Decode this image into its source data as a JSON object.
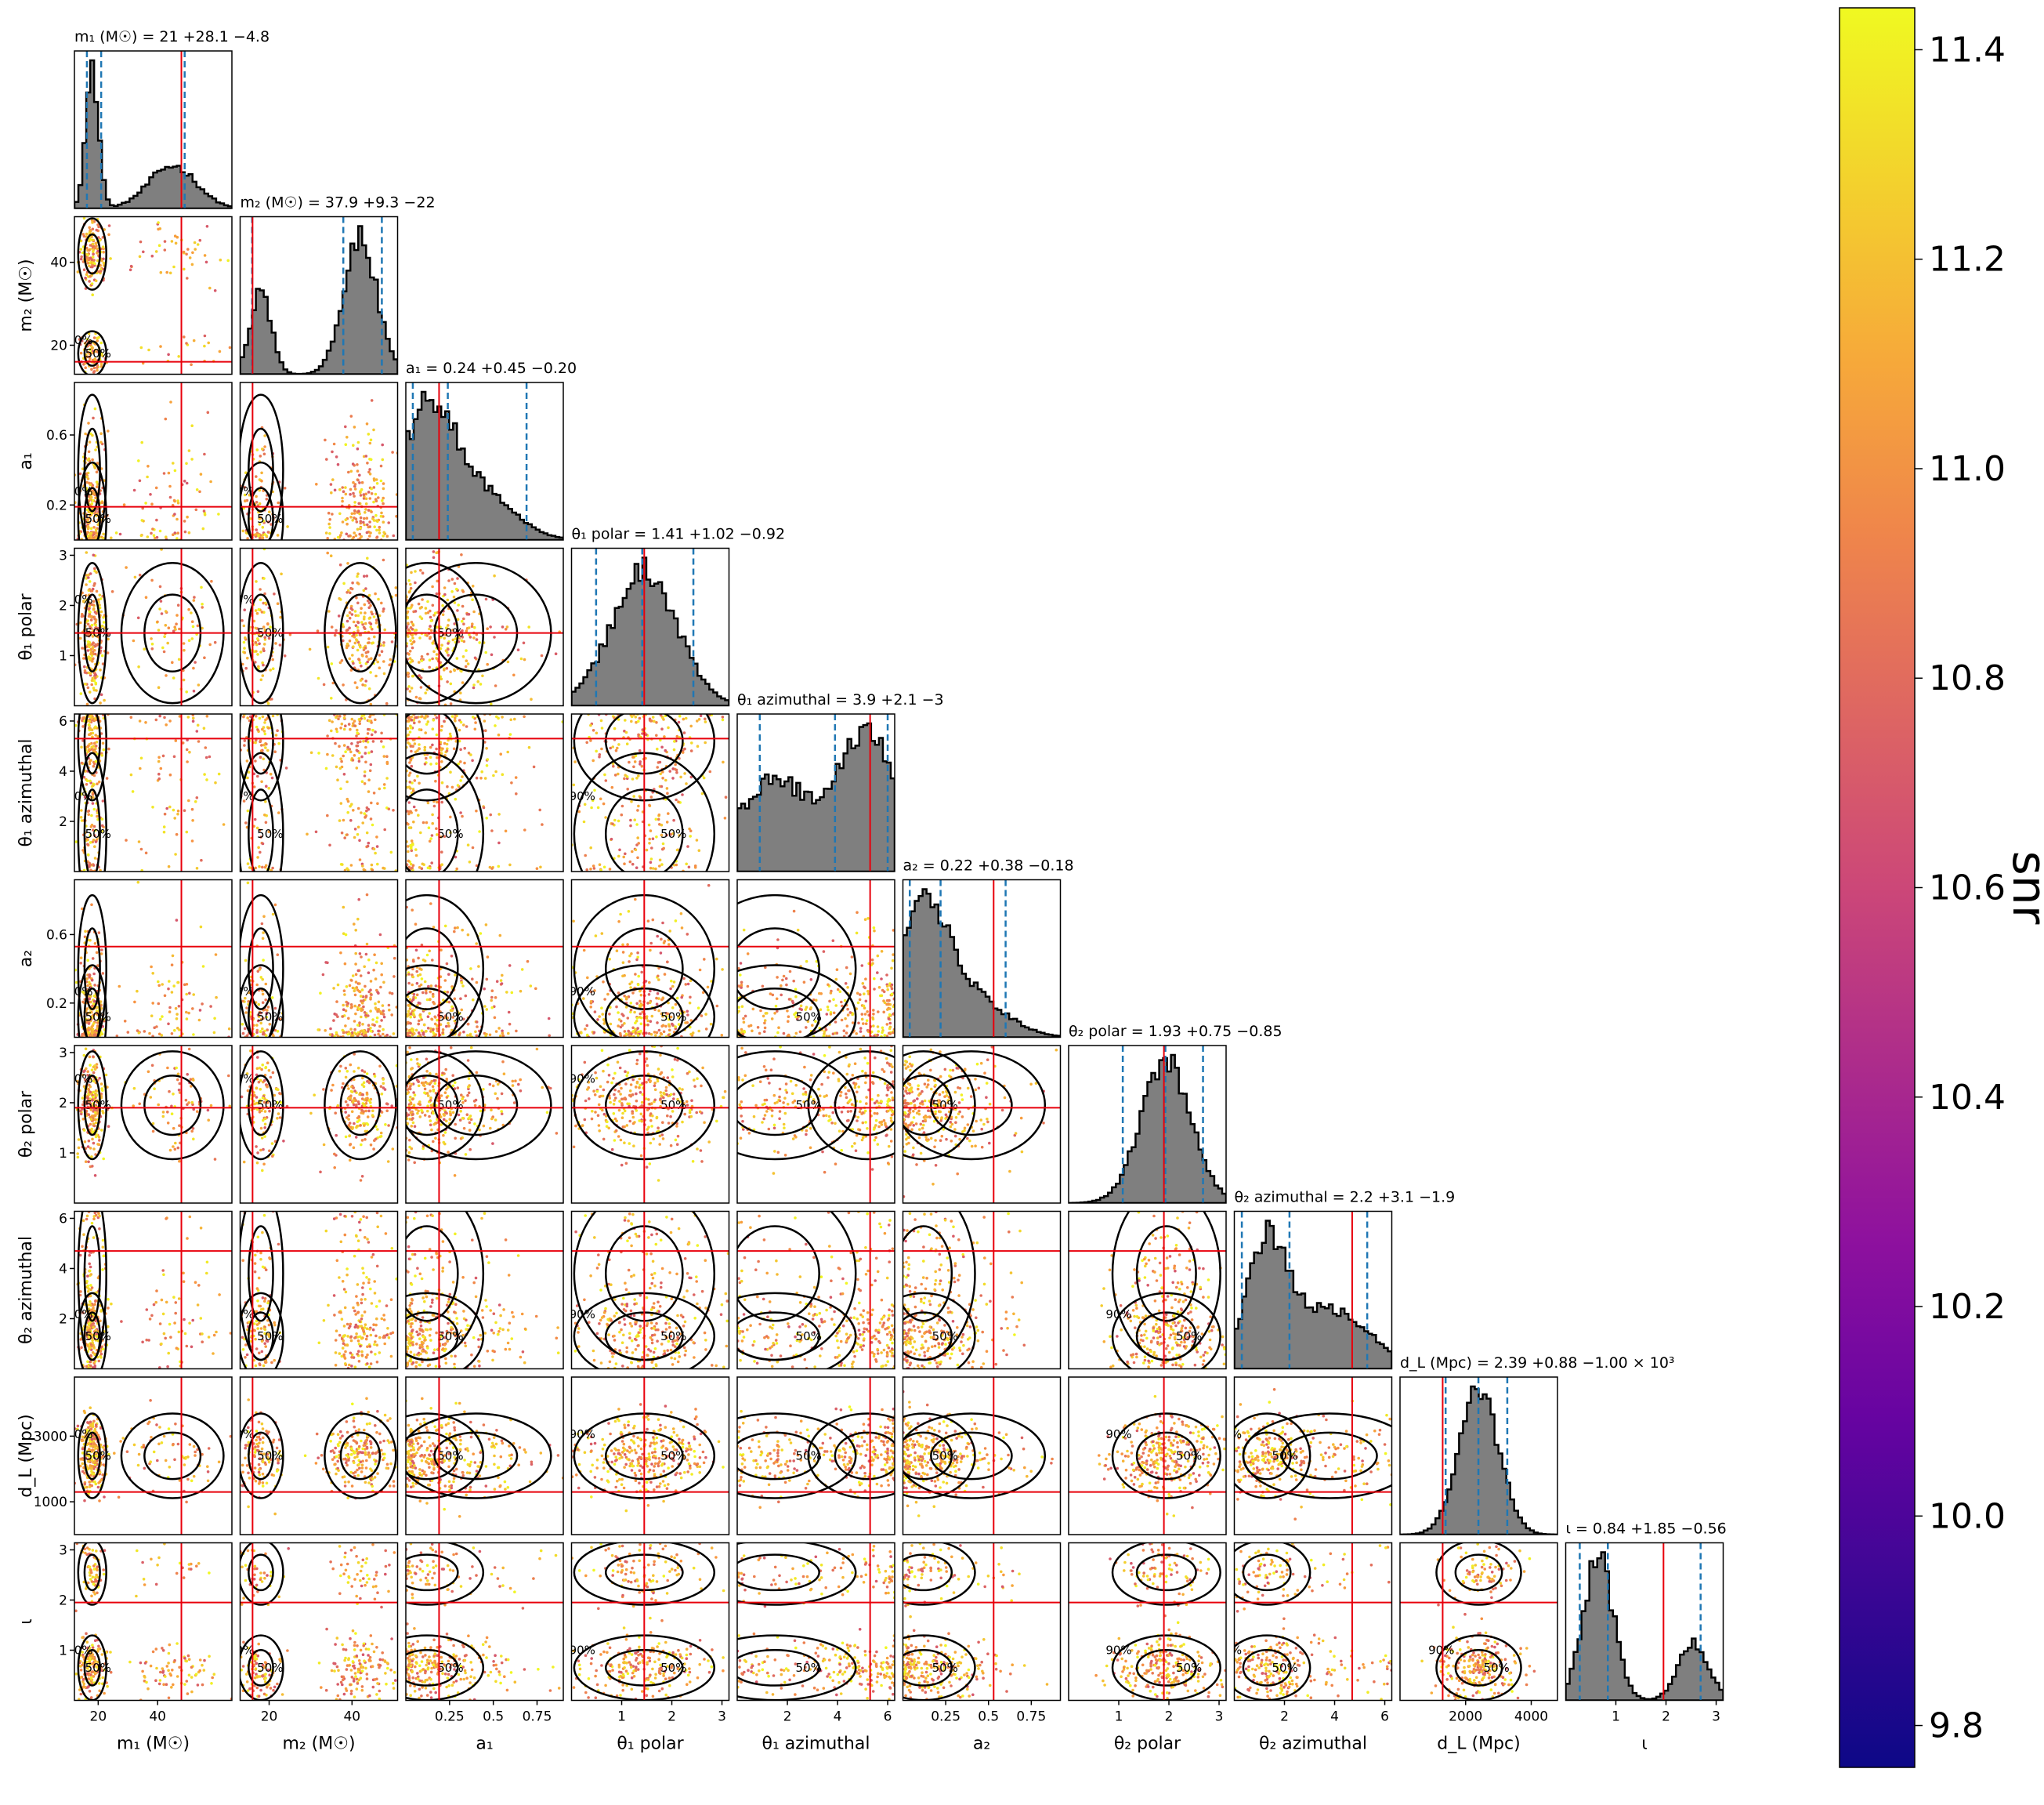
{
  "chart_data": {
    "type": "scatter",
    "subtype": "corner-plot",
    "params": [
      {
        "key": "m1",
        "label": "m₁ (M☉)",
        "range": [
          12,
          65
        ],
        "ticks": [
          20,
          40
        ],
        "truth": 48,
        "median": 21,
        "q16": 16.2,
        "q84": 49.1,
        "title": "m₁ (M☉) = 21 +28.1 −4.8",
        "peaks": [
          [
            0.8,
            18,
            2.2
          ],
          [
            0.25,
            45,
            8
          ]
        ]
      },
      {
        "key": "m2",
        "label": "m₂ (M☉)",
        "range": [
          13,
          51
        ],
        "ticks": [
          20,
          40
        ],
        "truth": 16,
        "median": 37.9,
        "q16": 15.9,
        "q84": 47.2,
        "title": "m₂ (M☉) = 37.9 +9.3 −22",
        "peaks": [
          [
            0.6,
            18,
            2.5
          ],
          [
            1,
            42,
            4
          ]
        ]
      },
      {
        "key": "a1",
        "label": "a₁",
        "range": [
          0,
          0.9
        ],
        "ticks": [
          0.2,
          0.6
        ],
        "tickLabelsX": [
          0.25,
          0.5,
          0.75
        ],
        "truth": 0.19,
        "median": 0.24,
        "q16": 0.04,
        "q84": 0.69,
        "title": "a₁ = 0.24 +0.45 −0.20",
        "peaks": [
          [
            1,
            0.12,
            0.15
          ],
          [
            0.4,
            0.4,
            0.2
          ]
        ]
      },
      {
        "key": "theta1_polar",
        "label": "θ₁ polar",
        "range": [
          0,
          3.14
        ],
        "ticks": [
          1,
          2,
          3
        ],
        "truth": 1.45,
        "median": 1.41,
        "q16": 0.49,
        "q84": 2.43,
        "title": "θ₁ polar = 1.41 +1.02 −0.92",
        "peaks": [
          [
            1,
            1.45,
            0.65
          ]
        ]
      },
      {
        "key": "theta1_azimuthal",
        "label": "θ₁ azimuthal",
        "range": [
          0,
          6.28
        ],
        "ticks": [
          2,
          4,
          6
        ],
        "truth": 5.3,
        "median": 3.9,
        "q16": 0.9,
        "q84": 6.0,
        "title": "θ₁ azimuthal = 3.9 +2.1 −3",
        "peaks": [
          [
            0.6,
            1.5,
            1.5
          ],
          [
            0.9,
            5.2,
            1.1
          ]
        ]
      },
      {
        "key": "a2",
        "label": "a₂",
        "range": [
          0,
          0.92
        ],
        "ticks": [
          0.2,
          0.6
        ],
        "tickLabelsX": [
          0.25,
          0.5,
          0.75
        ],
        "truth": 0.53,
        "median": 0.22,
        "q16": 0.04,
        "q84": 0.6,
        "title": "a₂ = 0.22 +0.38 −0.18",
        "peaks": [
          [
            1,
            0.12,
            0.14
          ],
          [
            0.3,
            0.4,
            0.2
          ]
        ]
      },
      {
        "key": "theta2_polar",
        "label": "θ₂ polar",
        "range": [
          0,
          3.14
        ],
        "ticks": [
          1,
          2,
          3
        ],
        "truth": 1.9,
        "median": 1.93,
        "q16": 1.08,
        "q84": 2.68,
        "title": "θ₂ polar = 1.93 +0.75 −0.85",
        "peaks": [
          [
            1,
            1.95,
            0.5
          ]
        ]
      },
      {
        "key": "theta2_azimuthal",
        "label": "θ₂ azimuthal",
        "range": [
          0,
          6.28
        ],
        "ticks": [
          2,
          4,
          6
        ],
        "truth": 4.7,
        "median": 2.2,
        "q16": 0.3,
        "q84": 5.3,
        "title": "θ₂ azimuthal = 2.2 +3.1 −1.9",
        "peaks": [
          [
            1,
            1.3,
            0.8
          ],
          [
            0.5,
            3.8,
            1.6
          ]
        ]
      },
      {
        "key": "dL",
        "label": "d_L (Mpc)",
        "range": [
          0,
          4800
        ],
        "ticks": [
          1000,
          3000
        ],
        "tickLabelsX": [
          2000,
          4000
        ],
        "truth": 1300,
        "median": 2390,
        "q16": 1390,
        "q84": 3270,
        "title": "d_L (Mpc) = 2.39 +0.88 −1.00 × 10³",
        "peaks": [
          [
            1,
            2400,
            600
          ]
        ]
      },
      {
        "key": "iota",
        "label": "ι",
        "range": [
          0,
          3.14
        ],
        "ticks": [
          1,
          2,
          3
        ],
        "truth": 1.95,
        "median": 0.84,
        "q16": 0.28,
        "q84": 2.69,
        "title": "ι = 0.84 +1.85 −0.56",
        "peaks": [
          [
            1,
            0.65,
            0.3
          ],
          [
            0.4,
            2.55,
            0.3
          ]
        ]
      }
    ],
    "contour_levels": [
      "50%",
      "90%"
    ],
    "colorbar": {
      "label": "snr",
      "min": 9.76,
      "max": 11.44,
      "ticks": [
        "9.8",
        "10.0",
        "10.2",
        "10.4",
        "10.6",
        "10.8",
        "11.0",
        "11.2",
        "11.4"
      ]
    },
    "colors": {
      "hist": "#7f7f7f",
      "quantile": "#1f77b4",
      "truth": "#e8000b",
      "contour": "#000000"
    }
  }
}
